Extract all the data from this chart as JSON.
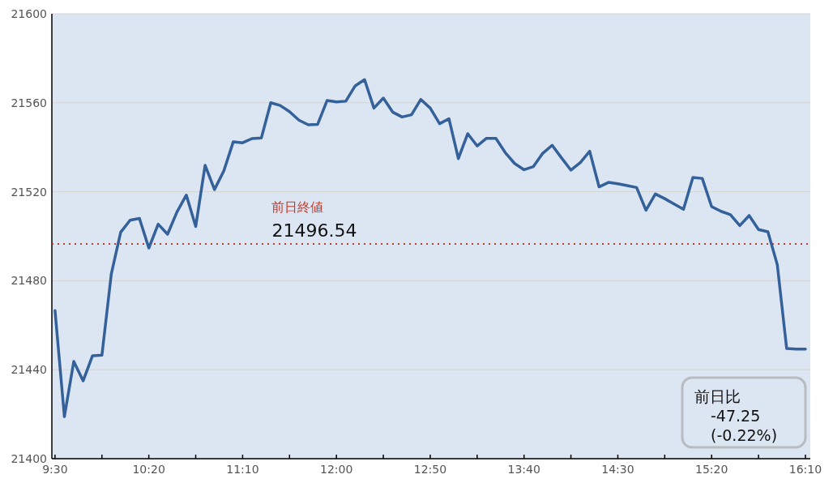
{
  "chart_data": {
    "type": "line",
    "x": [
      9.5,
      9.5833,
      9.6667,
      9.75,
      9.8333,
      9.9167,
      10,
      10.0833,
      10.1667,
      10.25,
      10.3333,
      10.4167,
      10.5,
      10.5833,
      10.6667,
      10.75,
      10.8333,
      10.9167,
      11,
      11.0833,
      11.1667,
      11.25,
      11.3333,
      11.4167,
      11.5,
      11.5833,
      11.6667,
      11.75,
      11.8333,
      11.9167,
      12,
      12.0833,
      12.1667,
      12.25,
      12.3333,
      12.4167,
      12.5,
      12.5833,
      12.6667,
      12.75,
      12.8333,
      12.9167,
      13,
      13.0833,
      13.1667,
      13.25,
      13.3333,
      13.4167,
      13.5,
      13.5833,
      13.6667,
      13.75,
      13.8333,
      13.9167,
      14,
      14.0833,
      14.1667,
      14.25,
      14.3333,
      14.4167,
      14.5,
      14.5833,
      14.6667,
      14.75,
      14.8333,
      14.9167,
      15,
      15.0833,
      15.1667,
      15.25,
      15.3333,
      15.4167,
      15.5,
      15.5833,
      15.6667,
      15.75,
      15.8333,
      15.9167,
      16,
      16.0833,
      16.1667
    ],
    "series": [
      {
        "color": "#34619a",
        "values": [
          21466.6,
          21418.9,
          21443.7,
          21435,
          21446.3,
          21446.5,
          21483,
          21501.8,
          21507.2,
          21508,
          21494.7,
          21505.4,
          21500.9,
          21510.9,
          21518.5,
          21504.4,
          21531.9,
          21521,
          21529.4,
          21542.4,
          21542,
          21543.9,
          21544.2,
          21560,
          21558.8,
          21556,
          21552.2,
          21550.1,
          21550.3,
          21561,
          21560.4,
          21560.7,
          21567.6,
          21570.4,
          21557.6,
          21562.1,
          21555.8,
          21553.6,
          21554.6,
          21561.5,
          21557.6,
          21550.6,
          21552.8,
          21534.9,
          21546.1,
          21540.6,
          21544,
          21544,
          21537.6,
          21532.7,
          21529.9,
          21531.3,
          21537.3,
          21540.9,
          21535.2,
          21529.7,
          21533.1,
          21538.2,
          21522.2,
          21524.2,
          21523.6,
          21522.8,
          21521.9,
          21511.7,
          21519,
          21516.9,
          21514.5,
          21512.1,
          21526.4,
          21526,
          21513.3,
          21511.2,
          21509.7,
          21504.8,
          21509.3,
          21503,
          21502,
          21487.2,
          21449.5,
          21449.3,
          21449.3
        ]
      }
    ],
    "xlim": [
      9.472,
      16.21
    ],
    "xticks": [
      {
        "value": 9.5,
        "label": "9:30"
      },
      {
        "value": 9.9167,
        "label": null
      },
      {
        "value": 10.3333,
        "label": "10:20"
      },
      {
        "value": 10.75,
        "label": null
      },
      {
        "value": 11.1667,
        "label": "11:10"
      },
      {
        "value": 11.5833,
        "label": null
      },
      {
        "value": 12,
        "label": "12:00"
      },
      {
        "value": 12.4167,
        "label": null
      },
      {
        "value": 12.8333,
        "label": "12:50"
      },
      {
        "value": 13.25,
        "label": null
      },
      {
        "value": 13.6667,
        "label": "13:40"
      },
      {
        "value": 14.0833,
        "label": null
      },
      {
        "value": 14.5,
        "label": "14:30"
      },
      {
        "value": 14.9167,
        "label": null
      },
      {
        "value": 15.3333,
        "label": "15:20"
      },
      {
        "value": 15.75,
        "label": null
      },
      {
        "value": 16.1667,
        "label": "16:10"
      }
    ],
    "ylim": [
      21400,
      21600
    ],
    "yticks": [
      21400,
      21440,
      21480,
      21520,
      21560,
      21600
    ],
    "grid": "y",
    "marker": "none",
    "line_style": "solid",
    "ref_lines": [
      {
        "axis": "y",
        "value": 21496.54,
        "label": "前日終値",
        "color": "#c0392b",
        "line_style": "dotted"
      }
    ],
    "annotations": [
      "21496.54",
      "前日比",
      "-47.25",
      "(-0.22%)"
    ]
  }
}
